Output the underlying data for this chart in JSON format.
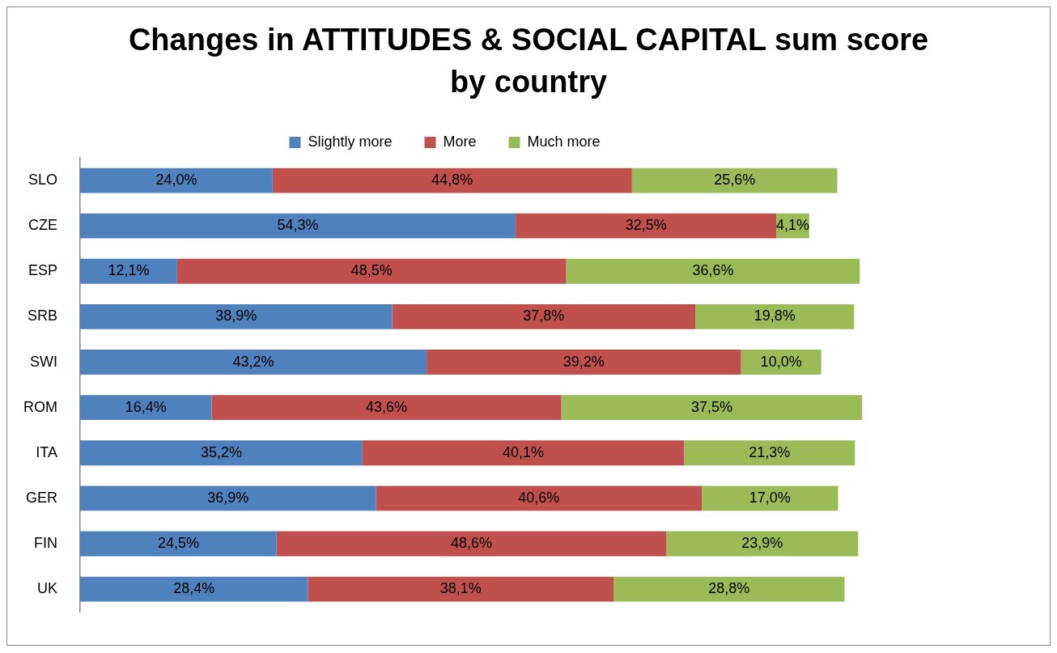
{
  "chart_data": {
    "type": "bar",
    "orientation": "horizontal",
    "stacked": true,
    "title": "Changes in ATTITUDES & SOCIAL CAPITAL sum score by country",
    "categories": [
      "SLO",
      "CZE",
      "ESP",
      "SRB",
      "SWI",
      "ROM",
      "ITA",
      "GER",
      "FIN",
      "UK"
    ],
    "series": [
      {
        "name": "Slightly more",
        "color": "#4f81bd",
        "values": [
          24.0,
          54.3,
          12.1,
          38.9,
          43.2,
          16.4,
          35.2,
          36.9,
          24.5,
          28.4
        ],
        "value_labels": [
          "24,0%",
          "54,3%",
          "12,1%",
          "38,9%",
          "43,2%",
          "16,4%",
          "35,2%",
          "36,9%",
          "24,5%",
          "28,4%"
        ]
      },
      {
        "name": "More",
        "color": "#c0504d",
        "values": [
          44.8,
          32.5,
          48.5,
          37.8,
          39.2,
          43.6,
          40.1,
          40.6,
          48.6,
          38.1
        ],
        "value_labels": [
          "44,8%",
          "32,5%",
          "48,5%",
          "37,8%",
          "39,2%",
          "43,6%",
          "40,1%",
          "40,6%",
          "48,6%",
          "38,1%"
        ]
      },
      {
        "name": "Much more",
        "color": "#9bbb59",
        "values": [
          25.6,
          4.1,
          36.6,
          19.8,
          10.0,
          37.5,
          21.3,
          17.0,
          23.9,
          28.8
        ],
        "value_labels": [
          "25,6%",
          "4,1%",
          "36,6%",
          "19,8%",
          "10,0%",
          "37,5%",
          "21,3%",
          "17,0%",
          "23,9%",
          "28,8%"
        ]
      }
    ],
    "tick_labels": "y",
    "grid": false,
    "legend": "top"
  }
}
